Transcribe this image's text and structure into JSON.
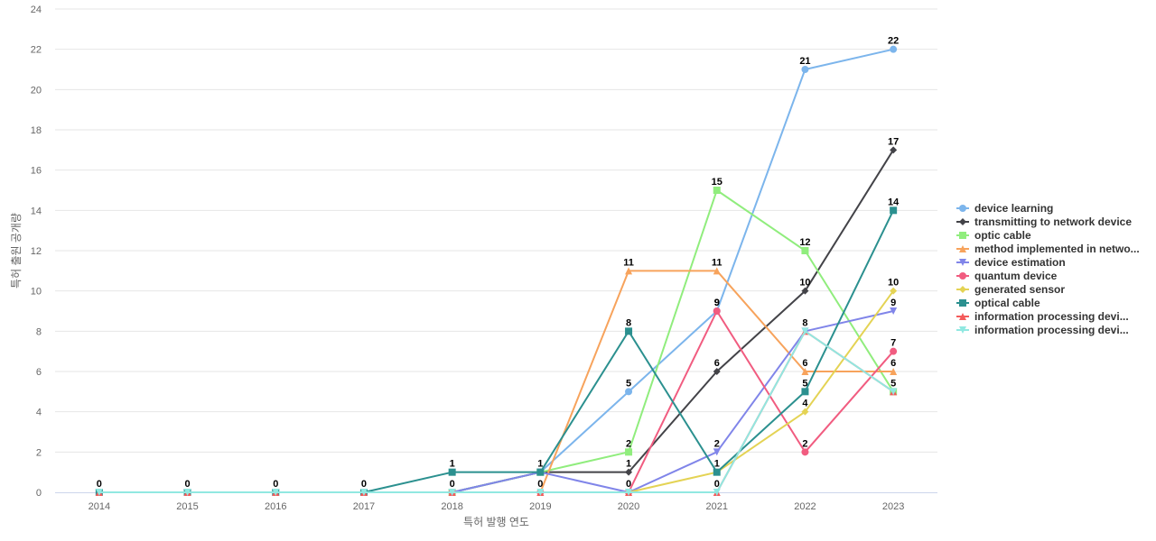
{
  "chart_data": {
    "type": "line",
    "title": "",
    "xlabel": "특허 발행 연도",
    "ylabel": "특허 출원 공개량",
    "x": [
      "2014",
      "2015",
      "2016",
      "2017",
      "2018",
      "2019",
      "2020",
      "2021",
      "2022",
      "2023"
    ],
    "ylim": [
      0,
      24
    ],
    "yticks": [
      0,
      2,
      4,
      6,
      8,
      10,
      12,
      14,
      16,
      18,
      20,
      22,
      24
    ],
    "grid": true,
    "legend_position": "right",
    "series": [
      {
        "name": "device learning",
        "color": "#7cb5ec",
        "marker": "circle",
        "values": [
          null,
          null,
          null,
          null,
          0,
          1,
          5,
          9,
          21,
          22
        ],
        "labels": [
          null,
          null,
          null,
          null,
          null,
          null,
          5,
          9,
          21,
          22
        ]
      },
      {
        "name": "transmitting to network device",
        "color": "#434348",
        "marker": "diamond",
        "values": [
          null,
          null,
          null,
          null,
          0,
          1,
          1,
          6,
          10,
          17
        ],
        "labels": [
          null,
          null,
          null,
          null,
          null,
          null,
          1,
          6,
          10,
          17
        ]
      },
      {
        "name": "optic cable",
        "color": "#90ed7d",
        "marker": "square",
        "values": [
          null,
          null,
          null,
          null,
          0,
          1,
          2,
          15,
          12,
          5
        ],
        "labels": [
          null,
          null,
          null,
          null,
          null,
          null,
          2,
          15,
          12,
          null
        ]
      },
      {
        "name": "method implemented in netwo...",
        "color": "#f7a35c",
        "marker": "triangle",
        "values": [
          null,
          null,
          null,
          null,
          0,
          0,
          11,
          11,
          6,
          6
        ],
        "labels": [
          null,
          null,
          null,
          null,
          null,
          null,
          11,
          11,
          6,
          6
        ]
      },
      {
        "name": "device estimation",
        "color": "#8085e9",
        "marker": "triangle-down",
        "values": [
          null,
          null,
          null,
          null,
          0,
          1,
          0,
          2,
          8,
          9
        ],
        "labels": [
          null,
          null,
          null,
          null,
          null,
          null,
          null,
          2,
          null,
          9
        ]
      },
      {
        "name": "quantum device",
        "color": "#f15c80",
        "marker": "circle",
        "values": [
          null,
          null,
          null,
          null,
          0,
          0,
          0,
          9,
          2,
          7
        ],
        "labels": [
          null,
          null,
          null,
          null,
          null,
          null,
          0,
          9,
          2,
          7
        ]
      },
      {
        "name": "generated sensor",
        "color": "#e4d354",
        "marker": "diamond",
        "values": [
          null,
          null,
          null,
          null,
          0,
          0,
          0,
          1,
          4,
          10
        ],
        "labels": [
          null,
          null,
          null,
          null,
          null,
          null,
          null,
          null,
          4,
          10
        ]
      },
      {
        "name": "optical cable",
        "color": "#2b908f",
        "marker": "square",
        "values": [
          0,
          0,
          0,
          0,
          1,
          1,
          8,
          1,
          5,
          14
        ],
        "labels": [
          0,
          0,
          0,
          0,
          1,
          1,
          8,
          1,
          5,
          14
        ]
      },
      {
        "name": "information processing devi...",
        "color": "#f45b5b",
        "marker": "triangle",
        "values": [
          0,
          0,
          0,
          0,
          0,
          0,
          0,
          0,
          8,
          5
        ],
        "labels": [
          null,
          null,
          null,
          null,
          0,
          0,
          null,
          null,
          null,
          null
        ]
      },
      {
        "name": "information processing devi...",
        "color": "#91e8e1",
        "marker": "triangle-down",
        "values": [
          0,
          0,
          0,
          0,
          0,
          0,
          0,
          0,
          8,
          5
        ],
        "labels": [
          null,
          null,
          null,
          null,
          null,
          null,
          null,
          0,
          8,
          5
        ]
      }
    ]
  }
}
